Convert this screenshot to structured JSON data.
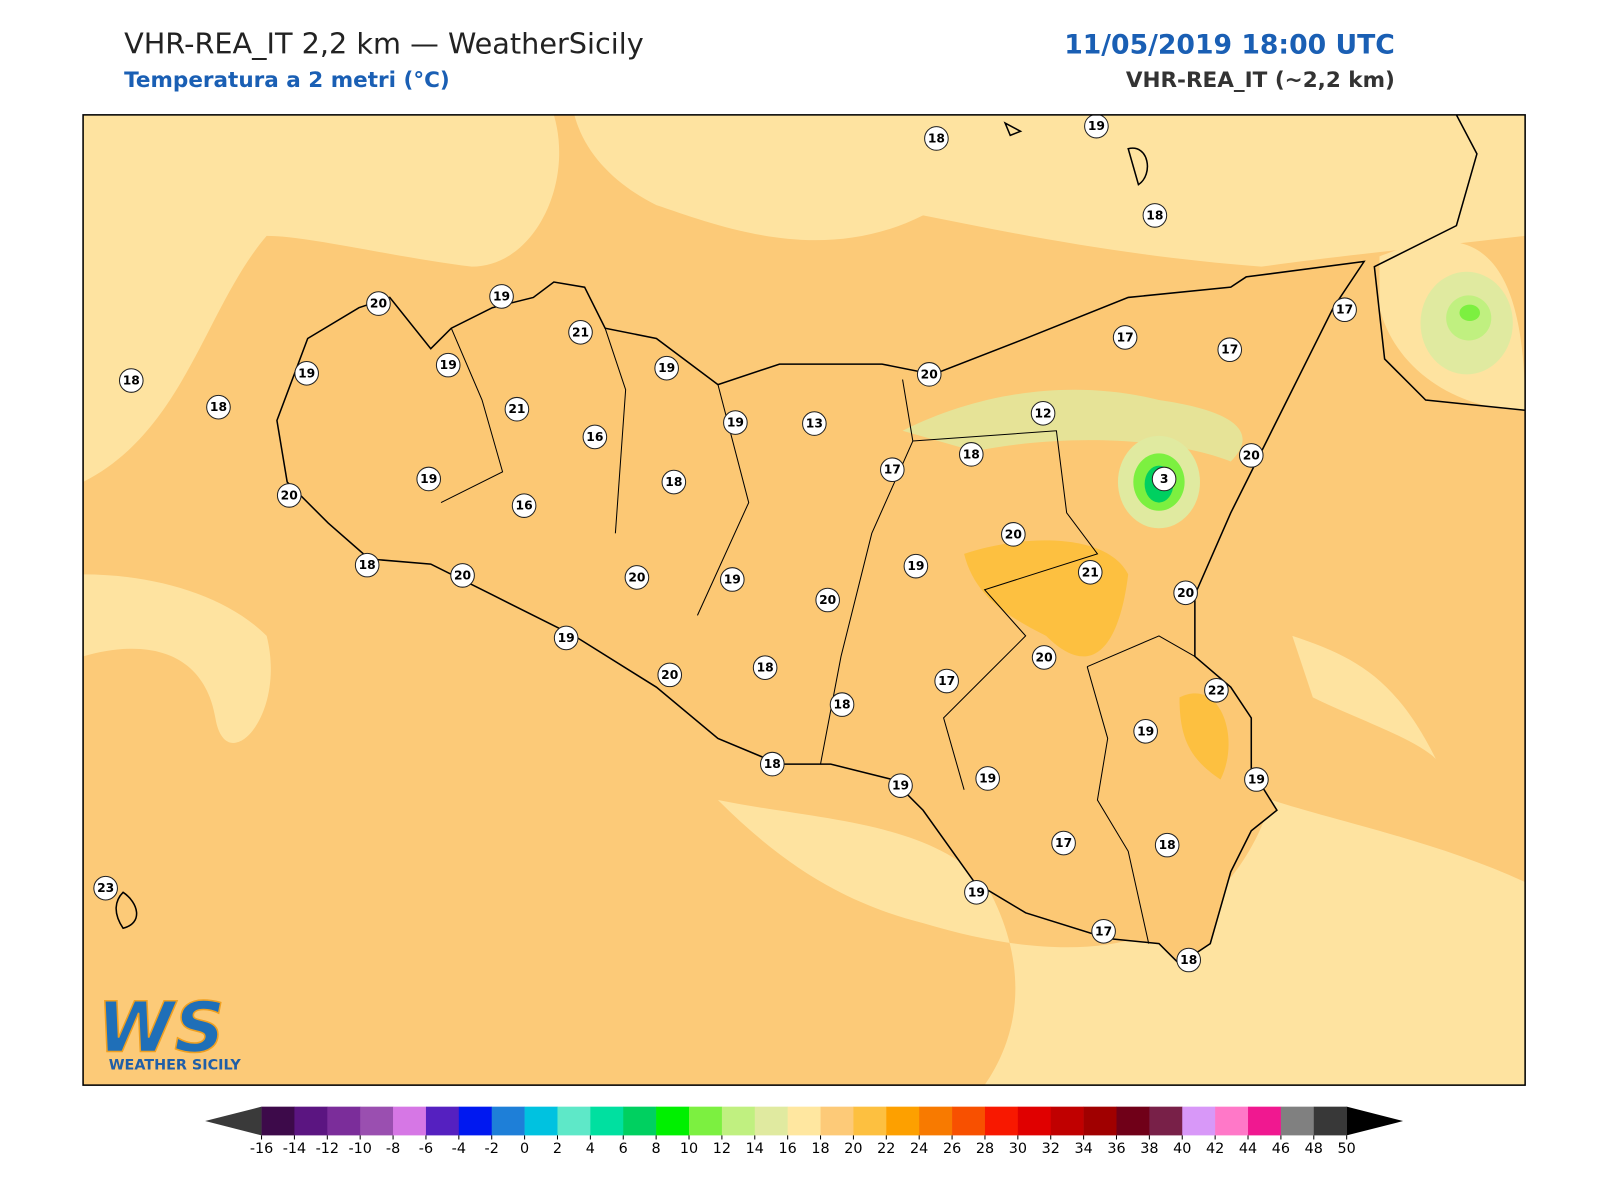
{
  "header": {
    "title": "VHR-REA_IT 2,2 km — WeatherSicily",
    "subtitle": "Temperatura a 2 metri (°C)",
    "datetime": "11/05/2019 18:00 UTC",
    "model": "VHR-REA_IT (~2,2 km)"
  },
  "map": {
    "stations": [
      18,
      19,
      18,
      17,
      17,
      17,
      20,
      19,
      21,
      19,
      19,
      19,
      20,
      18,
      18,
      21,
      16,
      19,
      13,
      12,
      18,
      17,
      3,
      20,
      19,
      18,
      20,
      16,
      20,
      19,
      21,
      18,
      20,
      20,
      19,
      20,
      20,
      19,
      20,
      18,
      20,
      17,
      22,
      18,
      19,
      18,
      19,
      19,
      19,
      17,
      18,
      23,
      19,
      17,
      18
    ]
  },
  "colorbar": {
    "ticks": [
      -16,
      -14,
      -12,
      -10,
      -8,
      -6,
      -4,
      -2,
      0,
      2,
      4,
      6,
      8,
      10,
      12,
      14,
      16,
      18,
      20,
      22,
      24,
      26,
      28,
      30,
      32,
      34,
      36,
      38,
      40,
      42,
      44,
      46,
      48,
      50
    ],
    "colors": [
      "#3d0a4a",
      "#5b1581",
      "#7b2d9a",
      "#9a4fb0",
      "#d677e5",
      "#5520c0",
      "#0018f0",
      "#1e7fd8",
      "#00c2e0",
      "#5ee8c8",
      "#00e0a0",
      "#00d060",
      "#00f000",
      "#7cf040",
      "#c0f080",
      "#e0eaa0",
      "#ffe7a0",
      "#fdca78",
      "#fdc040",
      "#fda000",
      "#f87a00",
      "#f85000",
      "#f81800",
      "#e00000",
      "#c00000",
      "#a00000",
      "#700018",
      "#782048",
      "#d898f8",
      "#ff78c8",
      "#f01890",
      "#808080",
      "#383838"
    ],
    "under_color": "#3a3a3a",
    "over_color": "#000000"
  },
  "logo": {
    "mark": "WS",
    "text": "WEATHER SICILY"
  }
}
